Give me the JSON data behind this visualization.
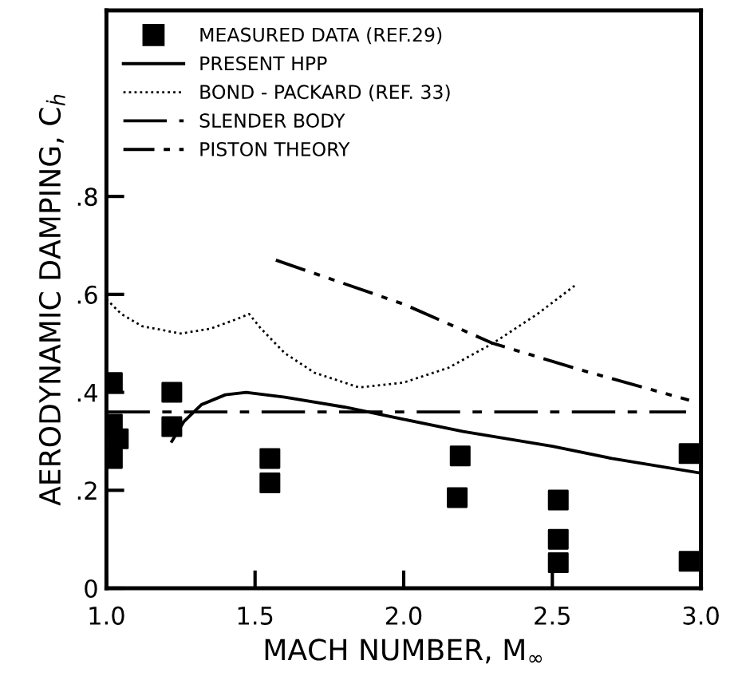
{
  "chart_data": {
    "type": "line",
    "xlabel": "MACH NUMBER, M$_{∞}$",
    "ylabel": "AERODYNAMIC DAMPING, C$_{ḣ}$",
    "xlim": [
      1.0,
      3.0
    ],
    "ylim": [
      0,
      1.18
    ],
    "xticks": [
      {
        "value": 1.0,
        "label": "1.0"
      },
      {
        "value": 1.5,
        "label": "1.5"
      },
      {
        "value": 2.0,
        "label": "2.0"
      },
      {
        "value": 2.5,
        "label": "2.5"
      },
      {
        "value": 3.0,
        "label": "3.0"
      }
    ],
    "yticks": [
      0,
      {
        "value": 0.2,
        "label": ".2"
      },
      {
        "value": 0.4,
        "label": ".4"
      },
      {
        "value": 0.6,
        "label": ".6"
      },
      {
        "value": 0.8,
        "label": ".8"
      }
    ],
    "grid": false,
    "legend": "top left",
    "series": [
      {
        "name": "MEASURED DATA (REF.29)",
        "type": "scatter",
        "marker": "square",
        "color": "#000000",
        "x": [
          1.02,
          1.02,
          1.04,
          1.02,
          1.22,
          1.22,
          1.55,
          1.55,
          2.19,
          2.18,
          2.52,
          2.52,
          2.52,
          2.96,
          2.96
        ],
        "values": [
          0.42,
          0.335,
          0.305,
          0.265,
          0.4,
          0.33,
          0.265,
          0.215,
          0.27,
          0.185,
          0.18,
          0.1,
          0.052,
          0.275,
          0.055
        ]
      },
      {
        "name": "PRESENT HPP",
        "line_style": "solid",
        "color": "#000000",
        "x": [
          1.22,
          1.26,
          1.32,
          1.4,
          1.47,
          1.6,
          1.8,
          2.0,
          2.2,
          2.5,
          2.7,
          3.0
        ],
        "values": [
          0.3,
          0.34,
          0.375,
          0.395,
          0.4,
          0.39,
          0.37,
          0.345,
          0.32,
          0.29,
          0.265,
          0.235
        ]
      },
      {
        "name": "BOND - PACKARD (REF. 33)",
        "line_style": "dotted",
        "color": "#000000",
        "x": [
          1.0,
          1.05,
          1.12,
          1.25,
          1.35,
          1.44,
          1.48,
          1.52,
          1.6,
          1.7,
          1.85,
          2.0,
          2.15,
          2.3,
          2.45,
          2.58
        ],
        "values": [
          0.59,
          0.56,
          0.535,
          0.52,
          0.53,
          0.55,
          0.56,
          0.53,
          0.48,
          0.44,
          0.41,
          0.42,
          0.45,
          0.5,
          0.56,
          0.62
        ]
      },
      {
        "name": "SLENDER BODY",
        "line_style": "dashdot",
        "color": "#000000",
        "x": [
          1.0,
          2.95
        ],
        "values": [
          0.36,
          0.36
        ]
      },
      {
        "name": "PISTON THEORY",
        "line_style": "dashdotdot",
        "color": "#000000",
        "x": [
          1.57,
          2.0,
          2.3,
          2.6,
          2.96
        ],
        "values": [
          0.67,
          0.58,
          0.5,
          0.445,
          0.384
        ]
      }
    ]
  }
}
